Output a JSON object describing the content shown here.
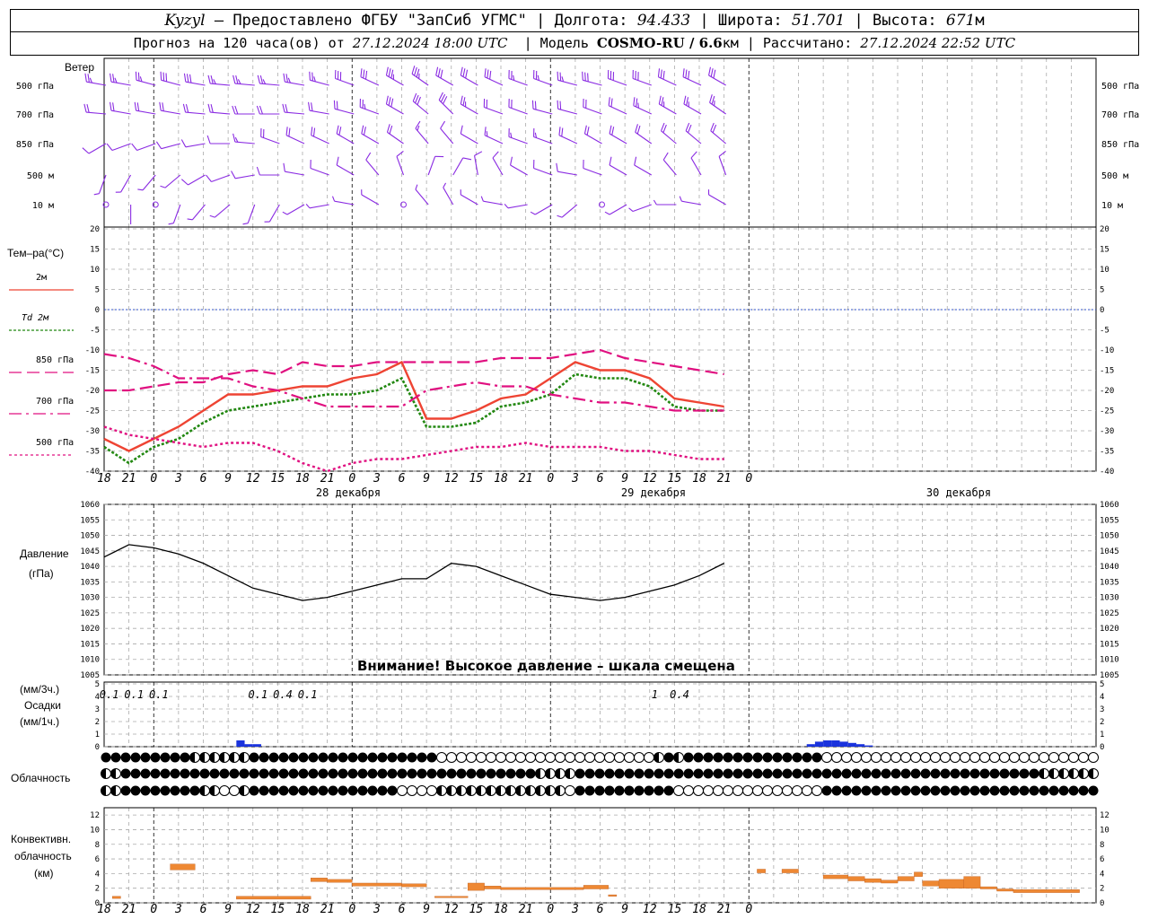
{
  "header": {
    "station": "Kyzyl",
    "provider": "– Предоставлено ФГБУ \"ЗапСиб УГМС\"",
    "lon_label": "Долгота:",
    "lon": "94.433",
    "lat_label": "Широта:",
    "lat": "51.701",
    "alt_label": "Высота:",
    "alt": "671",
    "alt_unit": "м",
    "forecast_label": "Прогноз на 120 часа(ов) от",
    "forecast_from": "27.12.2024 18:00 UTC",
    "model_label": "Модель",
    "model": "COSMO-RU / 6.6",
    "model_unit": "км",
    "calc_label": "Рассчитано:",
    "calc_time": "27.12.2024 22:52 UTC"
  },
  "labels": {
    "wind": "Ветер",
    "wind_levels": [
      "500 гПа",
      "700 гПа",
      "850 гПа",
      "500 м",
      "10 м"
    ],
    "temp_title": "Тем–ра(°C)",
    "temp_legend": [
      "2м",
      "Td 2м",
      "850 гПа",
      "700 гПа",
      "500 гПа"
    ],
    "pressure_title": "Давление",
    "pressure_unit": "(гПа)",
    "pressure_warning": "Внимание! Высокое давление – шкала смещена",
    "precip_unit3": "(мм/3ч.)",
    "precip_title": "Осадки",
    "precip_unit1": "(мм/1ч.)",
    "cloud_title": "Облачность",
    "conv_title": [
      "Конвективн.",
      "облачность",
      "(км)"
    ]
  },
  "colors": {
    "t2m": "#ee4433",
    "td2m": "#228811",
    "t850": "#e01080",
    "t700": "#e01080",
    "t500": "#e01080",
    "wind": "#8a2be2",
    "precip": "#1a33dd",
    "conv": "#ee8833",
    "zero_line": "#3355cc"
  },
  "chart_data": [
    {
      "type": "line",
      "title": "Тем–ра(°C)",
      "x_ticks": [
        "18",
        "21",
        "0",
        "3",
        "6",
        "9",
        "12",
        "15",
        "18",
        "21",
        "0",
        "3",
        "6",
        "9",
        "12",
        "15",
        "18",
        "21",
        "0",
        "3",
        "6",
        "9",
        "12",
        "15",
        "18",
        "21",
        "0"
      ],
      "days": [
        "28 декабря",
        "29 декабря",
        "30 декабря"
      ],
      "ylim": [
        -40,
        20
      ],
      "yticks": [
        20,
        15,
        10,
        5,
        0,
        -5,
        -10,
        -15,
        -20,
        -25,
        -30,
        -35,
        -40
      ],
      "series": [
        {
          "name": "2м",
          "style": "solid",
          "values": [
            -32,
            -35,
            -32,
            -29,
            -25,
            -21,
            -21,
            -20,
            -19,
            -19,
            -17,
            -16,
            -13,
            -27,
            -27,
            -25,
            -22,
            -21,
            -17,
            -13,
            -15,
            -15,
            -17,
            -22,
            -23,
            -24
          ]
        },
        {
          "name": "Td 2м",
          "style": "dotted",
          "values": [
            -34,
            -38,
            -34,
            -32,
            -28,
            -25,
            -24,
            -23,
            -22,
            -21,
            -21,
            -20,
            -17,
            -29,
            -29,
            -28,
            -24,
            -23,
            -21,
            -16,
            -17,
            -17,
            -19,
            -24,
            -25,
            -25
          ]
        },
        {
          "name": "850 гПа",
          "style": "dashed",
          "values": [
            -20,
            -20,
            -19,
            -18,
            -18,
            -16,
            -15,
            -16,
            -13,
            -14,
            -14,
            -13,
            -13,
            -13,
            -13,
            -13,
            -12,
            -12,
            -12,
            -11,
            -10,
            -12,
            -13,
            -14,
            -15,
            -16
          ]
        },
        {
          "name": "700 гПа",
          "style": "dashdot",
          "values": [
            -11,
            -12,
            -14,
            -17,
            -17,
            -17,
            -19,
            -20,
            -22,
            -24,
            -24,
            -24,
            -24,
            -20,
            -19,
            -18,
            -19,
            -19,
            -21,
            -22,
            -23,
            -23,
            -24,
            -25,
            -25,
            -25
          ]
        },
        {
          "name": "500 гПа",
          "style": "dotted2",
          "values": [
            -29,
            -31,
            -32,
            -33,
            -34,
            -33,
            -33,
            -35,
            -38,
            -40,
            -38,
            -37,
            -37,
            -36,
            -35,
            -34,
            -34,
            -33,
            -34,
            -34,
            -34,
            -35,
            -35,
            -36,
            -37,
            -37
          ]
        }
      ]
    },
    {
      "type": "line",
      "title": "Давление",
      "ylabel": "(гПа)",
      "ylim": [
        1005,
        1060
      ],
      "yticks": [
        1060,
        1055,
        1050,
        1045,
        1040,
        1035,
        1030,
        1025,
        1020,
        1015,
        1010,
        1005
      ],
      "values": [
        1043,
        1047,
        1046,
        1044,
        1041,
        1037,
        1033,
        1031,
        1029,
        1030,
        1032,
        1034,
        1036,
        1036,
        1041,
        1040,
        1037,
        1034,
        1031,
        1030,
        1029,
        1030,
        1032,
        1034,
        1037,
        1041
      ]
    },
    {
      "type": "bar",
      "title": "Осадки",
      "ylim": [
        0,
        5
      ],
      "yticks": [
        5,
        4,
        3,
        2,
        1,
        0
      ],
      "labels_3h": [
        {
          "at": 1,
          "text": "0.1"
        },
        {
          "at": 2,
          "text": "0.1"
        },
        {
          "at": 3,
          "text": "0.1"
        },
        {
          "at": 7,
          "text": "0.1"
        },
        {
          "at": 8,
          "text": "0.4"
        },
        {
          "at": 9,
          "text": "0.1"
        },
        {
          "at": 23,
          "text": "1"
        },
        {
          "at": 24,
          "text": "0.4"
        }
      ],
      "hourly": [
        {
          "h": 16,
          "v": 0.5
        },
        {
          "h": 17,
          "v": 0.2
        },
        {
          "h": 18,
          "v": 0.2
        },
        {
          "h": 85,
          "v": 0.2
        },
        {
          "h": 86,
          "v": 0.4
        },
        {
          "h": 87,
          "v": 0.5
        },
        {
          "h": 88,
          "v": 0.5
        },
        {
          "h": 89,
          "v": 0.4
        },
        {
          "h": 90,
          "v": 0.3
        },
        {
          "h": 91,
          "v": 0.2
        },
        {
          "h": 92,
          "v": 0.1
        }
      ]
    },
    {
      "type": "table",
      "title": "Облачность",
      "rows": [
        "FFFFFFFFFHHHHHHFFFFFFFFFFFFFFFFFFFEEEEEEEEEEEEEEEEEEEEEEHFHFFFFFFFFFFFFFFEEEEEEEEEEEEEEEEEEEEEEEEEEEEEE",
        "HHFFFFFFFFFFFFFFFFFFFFFFFFFFFFFFFFFFFFFFFFFFHHHHFFFFFFFFFFFFFFFFFFFFFFFFFFFFFFFFFFFFFFFFFFFFFFFHHHHHHH",
        "HHFFFFFFFFHHEEHFFFFFFFFFFFFFFFEEEEHHHHHHHHHHHHHEFFFFFFFFFFEEEEEEEEEEEEEEEFFFFFFFFFFFFFFFFFFFFFFFFFFFFF"
      ]
    },
    {
      "type": "bar",
      "title": "Конвективн. облачность",
      "ylabel": "(км)",
      "ylim": [
        0,
        13
      ],
      "yticks": [
        12,
        10,
        8,
        6,
        4,
        2,
        0
      ],
      "segments": [
        {
          "from": 1,
          "to": 2,
          "base": 0.6,
          "top": 0.9
        },
        {
          "from": 8,
          "to": 11,
          "base": 4.5,
          "top": 5.3
        },
        {
          "from": 16,
          "to": 25,
          "base": 0.5,
          "top": 0.9
        },
        {
          "from": 25,
          "to": 27,
          "base": 2.9,
          "top": 3.4
        },
        {
          "from": 27,
          "to": 30,
          "base": 2.8,
          "top": 3.2
        },
        {
          "from": 30,
          "to": 36,
          "base": 2.3,
          "top": 2.7
        },
        {
          "from": 36,
          "to": 39,
          "base": 2.2,
          "top": 2.6
        },
        {
          "from": 40,
          "to": 44,
          "base": 0.7,
          "top": 0.9
        },
        {
          "from": 44,
          "to": 46,
          "base": 1.7,
          "top": 2.7
        },
        {
          "from": 46,
          "to": 48,
          "base": 1.9,
          "top": 2.3
        },
        {
          "from": 48,
          "to": 58,
          "base": 1.8,
          "top": 2.1
        },
        {
          "from": 58,
          "to": 61,
          "base": 1.9,
          "top": 2.4
        },
        {
          "from": 61,
          "to": 62,
          "base": 0.9,
          "top": 1.1
        },
        {
          "from": 79,
          "to": 80,
          "base": 4.1,
          "top": 4.6
        },
        {
          "from": 82,
          "to": 84,
          "base": 4.1,
          "top": 4.6
        },
        {
          "from": 87,
          "to": 90,
          "base": 3.3,
          "top": 3.8
        },
        {
          "from": 90,
          "to": 92,
          "base": 3.0,
          "top": 3.6
        },
        {
          "from": 92,
          "to": 94,
          "base": 2.8,
          "top": 3.3
        },
        {
          "from": 94,
          "to": 96,
          "base": 2.7,
          "top": 3.1
        },
        {
          "from": 96,
          "to": 98,
          "base": 3.0,
          "top": 3.6
        },
        {
          "from": 98,
          "to": 99,
          "base": 3.6,
          "top": 4.2
        },
        {
          "from": 99,
          "to": 101,
          "base": 2.3,
          "top": 3.0
        },
        {
          "from": 101,
          "to": 104,
          "base": 2.0,
          "top": 3.2
        },
        {
          "from": 104,
          "to": 106,
          "base": 2.0,
          "top": 3.6
        },
        {
          "from": 106,
          "to": 108,
          "base": 1.9,
          "top": 2.2
        },
        {
          "from": 108,
          "to": 110,
          "base": 1.6,
          "top": 1.9
        },
        {
          "from": 110,
          "to": 118,
          "base": 1.4,
          "top": 1.8
        }
      ]
    },
    {
      "type": "wind_barbs",
      "title": "Ветер",
      "levels": [
        "500 гПа",
        "700 гПа",
        "850 гПа",
        "500 м",
        "10 м"
      ],
      "dir_deg": [
        [
          280,
          280,
          285,
          285,
          280,
          275,
          275,
          275,
          280,
          285,
          290,
          295,
          300,
          305,
          300,
          300,
          295,
          290,
          290,
          285,
          285,
          290,
          290,
          295,
          295,
          300
        ],
        [
          275,
          280,
          280,
          280,
          275,
          275,
          270,
          270,
          275,
          280,
          285,
          290,
          300,
          310,
          315,
          300,
          290,
          290,
          285,
          285,
          290,
          295,
          295,
          300,
          300,
          305
        ],
        [
          240,
          250,
          250,
          255,
          260,
          270,
          275,
          290,
          295,
          295,
          300,
          300,
          305,
          320,
          320,
          300,
          295,
          290,
          290,
          295,
          300,
          300,
          305,
          310,
          310,
          310
        ],
        [
          200,
          210,
          220,
          230,
          240,
          250,
          260,
          270,
          280,
          290,
          300,
          320,
          340,
          20,
          30,
          350,
          330,
          300,
          290,
          280,
          290,
          300,
          300,
          320,
          330,
          340
        ],
        [
          0,
          180,
          0,
          200,
          220,
          230,
          200,
          210,
          240,
          260,
          280,
          300,
          0,
          320,
          330,
          300,
          280,
          260,
          240,
          230,
          0,
          240,
          250,
          270,
          280,
          300
        ]
      ],
      "speed_ms": [
        [
          25,
          25,
          25,
          28,
          28,
          25,
          25,
          25,
          25,
          25,
          28,
          30,
          35,
          35,
          30,
          30,
          28,
          25,
          25,
          25,
          28,
          30,
          30,
          30,
          30,
          30
        ],
        [
          20,
          20,
          20,
          22,
          22,
          20,
          18,
          18,
          18,
          20,
          22,
          25,
          28,
          30,
          30,
          25,
          22,
          20,
          20,
          20,
          22,
          22,
          25,
          25,
          25,
          25
        ],
        [
          8,
          8,
          10,
          10,
          10,
          12,
          15,
          18,
          20,
          20,
          22,
          22,
          20,
          15,
          12,
          12,
          15,
          15,
          15,
          18,
          18,
          18,
          20,
          20,
          20,
          20
        ],
        [
          5,
          5,
          5,
          5,
          8,
          8,
          8,
          10,
          10,
          10,
          12,
          12,
          10,
          8,
          8,
          8,
          10,
          10,
          10,
          10,
          12,
          12,
          12,
          10,
          10,
          10
        ],
        [
          0,
          2,
          0,
          3,
          3,
          3,
          3,
          3,
          3,
          3,
          3,
          5,
          0,
          3,
          3,
          3,
          3,
          3,
          3,
          3,
          0,
          3,
          3,
          3,
          3,
          3
        ]
      ]
    }
  ]
}
